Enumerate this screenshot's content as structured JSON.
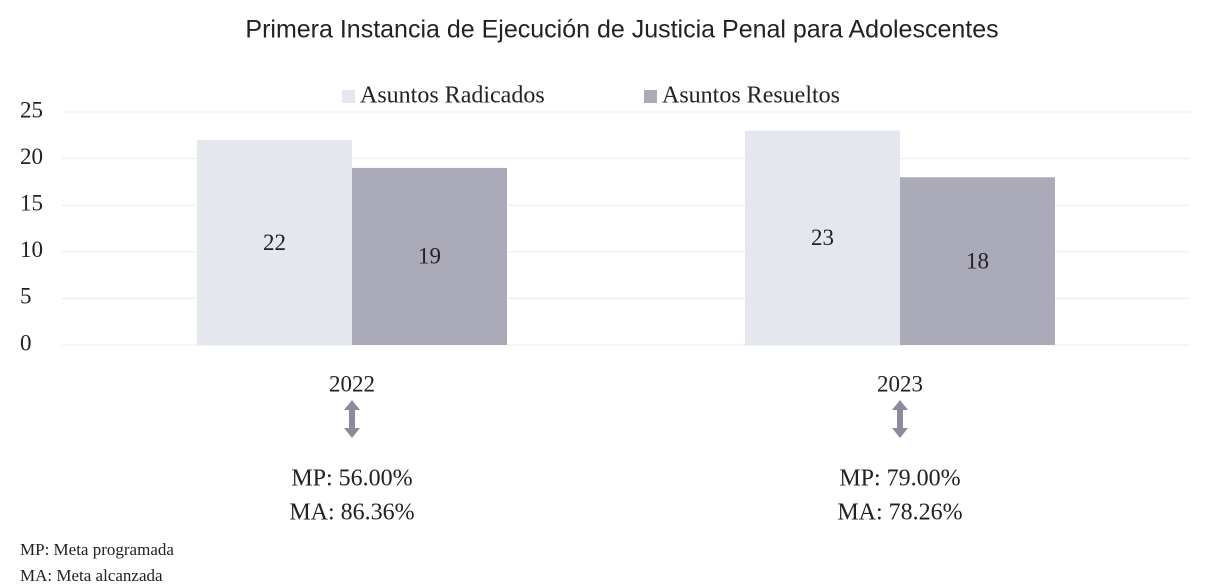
{
  "chart_data": {
    "type": "bar",
    "title": "Primera Instancia de Ejecución de Justicia Penal para Adolescentes",
    "categories": [
      "2022",
      "2023"
    ],
    "series": [
      {
        "name": "Asuntos Radicados",
        "color": "#e4e7ee",
        "values": [
          22,
          23
        ]
      },
      {
        "name": "Asuntos Resueltos",
        "color": "#abaab9",
        "values": [
          19,
          18
        ]
      }
    ],
    "ylim": [
      0,
      25
    ],
    "yticks": [
      0,
      5,
      10,
      15,
      20,
      25
    ],
    "grid": true,
    "legend": "top",
    "annotations": [
      [
        "MP: 56.00%",
        "MA: 86.36%"
      ],
      [
        "MP: 79.00%",
        "MA: 78.26%"
      ]
    ],
    "footnotes": [
      "MP: Meta programada",
      "MA: Meta alcanzada"
    ]
  }
}
